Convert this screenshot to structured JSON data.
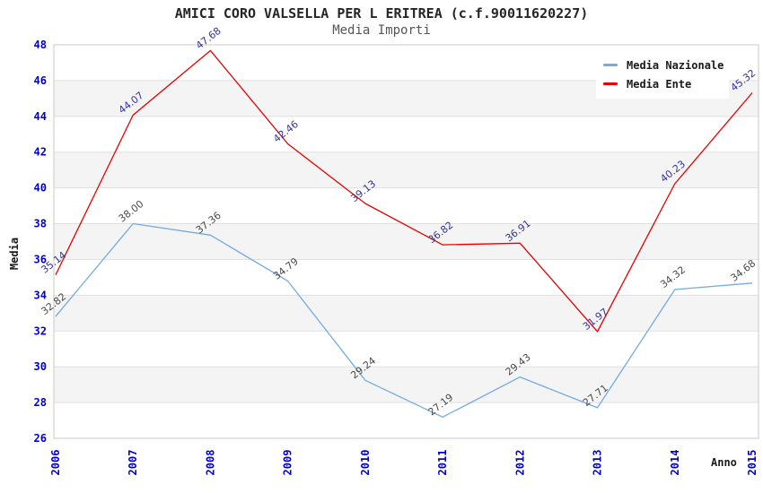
{
  "chart_data": {
    "type": "line",
    "title": "AMICI CORO VALSELLA PER L ERITREA (c.f.90011620227)",
    "subtitle": "Media Importi",
    "xlabel": "Anno",
    "ylabel": "Media",
    "x": [
      2006,
      2007,
      2008,
      2009,
      2010,
      2011,
      2012,
      2013,
      2014,
      2015
    ],
    "series": [
      {
        "name": "Media Nazionale",
        "color": "#74abe2",
        "label_color": "#4a4a4a",
        "values": [
          32.82,
          38.0,
          37.36,
          34.79,
          29.24,
          27.19,
          29.43,
          27.71,
          34.32,
          34.68
        ]
      },
      {
        "name": "Media Ente",
        "color": "#e60000",
        "label_color": "#333399",
        "values": [
          35.14,
          44.07,
          47.68,
          42.46,
          39.13,
          36.82,
          36.91,
          31.97,
          40.23,
          45.32
        ]
      }
    ],
    "ylim": [
      26,
      48
    ],
    "ytick_step": 2,
    "yticks": [
      26,
      28,
      30,
      32,
      34,
      36,
      38,
      40,
      42,
      44,
      46,
      48
    ],
    "grid": "horizontal-bands",
    "legend_position": "top-right",
    "colors": {
      "tick_label": "#0000cc",
      "band_fill": "#f4f4f4",
      "grid_line": "#e1e1e1",
      "frame": "#c8c8c8"
    }
  }
}
